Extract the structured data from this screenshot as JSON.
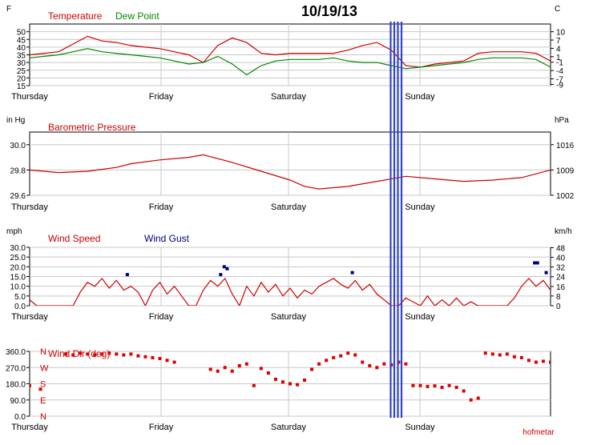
{
  "title": "10/19/13",
  "footer": "hofmetar",
  "colors": {
    "temp": "#cc0000",
    "dew": "#008800",
    "pressure": "#cc0000",
    "wind": "#cc0000",
    "gust": "#000080",
    "winddir": "#dd0000",
    "marker": "#3344cc",
    "grid": "#c8c8c8"
  },
  "day_labels": [
    "Thursday",
    "Friday",
    "Saturday",
    "Sunday"
  ],
  "marker_lines": [
    49.9,
    50.4,
    50.9,
    51.4
  ],
  "chart_data": [
    {
      "type": "line",
      "id": "temperature",
      "left_unit": "F",
      "right_unit": "C",
      "title_parts": [
        {
          "text": "Temperature",
          "color_key": "temp"
        },
        {
          "text": "Dew Point",
          "color_key": "dew"
        }
      ],
      "ylim": [
        15,
        55
      ],
      "y_ticks": [
        15,
        20,
        25,
        30,
        35,
        40,
        45,
        50
      ],
      "right_ticks": [
        {
          "label": "10",
          "v": 50
        },
        {
          "label": "7",
          "v": 44.6
        },
        {
          "label": "4",
          "v": 39.2
        },
        {
          "label": "1",
          "v": 33.8
        },
        {
          "label": "-1",
          "v": 30.2
        },
        {
          "label": "-4",
          "v": 24.8
        },
        {
          "label": "-7",
          "v": 19.4
        },
        {
          "label": "-9",
          "v": 15.8
        }
      ],
      "series": [
        {
          "name": "Temperature",
          "color_key": "temp",
          "x": [
            0,
            2,
            4,
            6,
            8,
            10,
            12,
            14,
            16,
            18,
            20,
            22,
            24,
            26,
            28,
            30,
            32,
            34,
            36,
            38,
            40,
            42,
            44,
            46,
            48,
            50,
            52,
            54,
            56,
            58,
            60,
            62,
            64,
            66,
            68,
            70,
            72
          ],
          "y": [
            35,
            36,
            37,
            42,
            47,
            44,
            43,
            41,
            40,
            39,
            37,
            35,
            30,
            41,
            46,
            43,
            36,
            35,
            36,
            36,
            36,
            36,
            38,
            41,
            43,
            38,
            28,
            27,
            29,
            30,
            31,
            36,
            37,
            37,
            37,
            36,
            31
          ]
        },
        {
          "name": "Dew Point",
          "color_key": "dew",
          "x": [
            0,
            2,
            4,
            6,
            8,
            10,
            12,
            14,
            16,
            18,
            20,
            22,
            24,
            26,
            28,
            30,
            32,
            34,
            36,
            38,
            40,
            42,
            44,
            46,
            48,
            50,
            52,
            54,
            56,
            58,
            60,
            62,
            64,
            66,
            68,
            70,
            72
          ],
          "y": [
            33,
            34,
            35,
            37,
            39,
            37,
            36,
            35,
            34,
            33,
            31,
            29,
            30,
            34,
            29,
            22,
            28,
            31,
            32,
            32,
            32,
            33,
            31,
            30,
            30,
            28,
            26,
            27,
            28,
            29,
            30,
            32,
            33,
            33,
            33,
            32,
            27
          ]
        }
      ]
    },
    {
      "type": "line",
      "id": "pressure",
      "left_unit": "in Hg",
      "right_unit": "hPa",
      "title_parts": [
        {
          "text": "Barometric Pressure",
          "color_key": "pressure"
        }
      ],
      "ylim": [
        29.6,
        30.1
      ],
      "y_ticks": [
        29.6,
        29.8,
        30.0
      ],
      "y_tick_labels": [
        "29.6",
        "29.8",
        "30.0"
      ],
      "right_ticks": [
        {
          "label": "1016",
          "v": 30.0
        },
        {
          "label": "1009",
          "v": 29.8
        },
        {
          "label": "1002",
          "v": 29.6
        }
      ],
      "series": [
        {
          "name": "Barometric Pressure",
          "color_key": "pressure",
          "x": [
            0,
            4,
            8,
            12,
            14,
            18,
            22,
            24,
            28,
            32,
            36,
            38,
            40,
            44,
            48,
            52,
            56,
            60,
            64,
            68,
            72
          ],
          "y": [
            29.8,
            29.78,
            29.79,
            29.82,
            29.85,
            29.88,
            29.9,
            29.92,
            29.86,
            29.79,
            29.72,
            29.67,
            29.65,
            29.67,
            29.71,
            29.75,
            29.73,
            29.71,
            29.72,
            29.74,
            29.8
          ]
        }
      ]
    },
    {
      "type": "line",
      "id": "wind",
      "left_unit": "mph",
      "right_unit": "km/h",
      "title_parts": [
        {
          "text": "Wind Speed",
          "color_key": "wind"
        },
        {
          "text": "Wind Gust",
          "color_key": "gust"
        }
      ],
      "ylim": [
        0,
        30
      ],
      "y_ticks": [
        0,
        5,
        10,
        15,
        20,
        25,
        30
      ],
      "y_tick_labels": [
        "0.0",
        "5.0",
        "10.0",
        "15.0",
        "20.0",
        "25.0",
        "30.0"
      ],
      "right_ticks": [
        {
          "label": "48",
          "v": 29.8
        },
        {
          "label": "40",
          "v": 24.9
        },
        {
          "label": "32",
          "v": 19.9
        },
        {
          "label": "24",
          "v": 14.9
        },
        {
          "label": "16",
          "v": 9.9
        },
        {
          "label": "8",
          "v": 5
        },
        {
          "label": "0",
          "v": 0
        }
      ],
      "series": [
        {
          "name": "Wind Speed",
          "color_key": "wind",
          "x": [
            0,
            1,
            2,
            3,
            4,
            5,
            6,
            7,
            8,
            9,
            10,
            11,
            12,
            13,
            14,
            15,
            16,
            17,
            18,
            19,
            20,
            21,
            22,
            23,
            24,
            25,
            26,
            27,
            28,
            29,
            30,
            31,
            32,
            33,
            34,
            35,
            36,
            37,
            38,
            39,
            40,
            41,
            42,
            43,
            44,
            45,
            46,
            47,
            48,
            49,
            50,
            51,
            52,
            53,
            54,
            55,
            56,
            57,
            58,
            59,
            60,
            61,
            62,
            63,
            64,
            65,
            66,
            67,
            68,
            69,
            70,
            71,
            72
          ],
          "y": [
            3,
            0,
            0,
            0,
            0,
            0,
            0,
            7,
            12,
            10,
            14,
            9,
            13,
            8,
            10,
            7,
            0,
            8,
            12,
            6,
            10,
            5,
            0,
            0,
            8,
            13,
            10,
            14,
            6,
            0,
            10,
            5,
            12,
            7,
            11,
            5,
            9,
            4,
            8,
            6,
            10,
            12,
            14,
            11,
            9,
            13,
            8,
            11,
            6,
            3,
            0,
            0,
            4,
            2,
            0,
            5,
            0,
            3,
            0,
            4,
            0,
            2,
            0,
            0,
            0,
            0,
            0,
            4,
            10,
            14,
            10,
            13,
            8
          ]
        },
        {
          "name": "Wind Gust",
          "color_key": "gust",
          "style": "points",
          "x": [
            13.5,
            26.4,
            26.9,
            27.3,
            44.6,
            69.8,
            70.2,
            71.4
          ],
          "y": [
            16,
            16,
            20,
            19,
            17,
            22,
            22,
            17
          ]
        }
      ]
    },
    {
      "type": "scatter",
      "id": "winddir",
      "left_unit": "",
      "title_parts": [
        {
          "text": "Wind Dir (deg)",
          "color_key": "winddir"
        }
      ],
      "ylim": [
        0,
        360
      ],
      "y_ticks": [
        0,
        90,
        180,
        270,
        360
      ],
      "y_tick_labels": [
        "0.0",
        "90.0",
        "180.0",
        "270.0",
        "360.0"
      ],
      "compass_ticks": [
        {
          "label": "N",
          "v": 360
        },
        {
          "label": "W",
          "v": 270
        },
        {
          "label": "S",
          "v": 180
        },
        {
          "label": "E",
          "v": 90
        },
        {
          "label": "N",
          "v": 0
        }
      ],
      "series": [
        {
          "name": "Wind Dir (deg)",
          "color_key": "winddir",
          "x": [
            0,
            1.5,
            5,
            6,
            7,
            8,
            9,
            10,
            11,
            12,
            13,
            14,
            15,
            16,
            17,
            18,
            19,
            20,
            25,
            26,
            27,
            28,
            29,
            30,
            31,
            32,
            33,
            34,
            35,
            36,
            37,
            38,
            39,
            40,
            41,
            42,
            43,
            44,
            45,
            46,
            47,
            48,
            49,
            50,
            51,
            52,
            53,
            54,
            55,
            56,
            57,
            58,
            59,
            60,
            61,
            62,
            63,
            64,
            65,
            66,
            67,
            68,
            69,
            70,
            71,
            72
          ],
          "y": [
            170,
            150,
            345,
            340,
            350,
            345,
            340,
            345,
            350,
            345,
            340,
            345,
            335,
            330,
            325,
            320,
            310,
            300,
            260,
            250,
            270,
            250,
            280,
            290,
            170,
            265,
            240,
            205,
            190,
            180,
            175,
            200,
            260,
            290,
            310,
            325,
            335,
            350,
            340,
            300,
            280,
            270,
            290,
            285,
            300,
            290,
            170,
            170,
            165,
            168,
            160,
            170,
            160,
            140,
            90,
            100,
            350,
            345,
            340,
            345,
            330,
            325,
            310,
            300,
            305,
            300
          ]
        }
      ]
    }
  ]
}
